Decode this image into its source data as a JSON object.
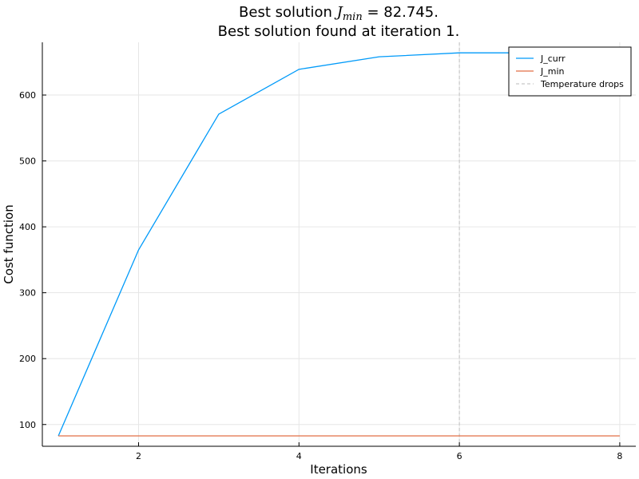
{
  "chart_data": {
    "type": "line",
    "title_line1": {
      "prefix": "Best solution ",
      "math_symbol": "J",
      "math_subscript": "min",
      "suffix": " = 82.745."
    },
    "title_line2": "Best solution found at iteration 1.",
    "xlabel": "Iterations",
    "ylabel": "Cost function",
    "xlim": [
      0.8,
      8.2
    ],
    "ylim": [
      67,
      680
    ],
    "xticks": [
      2,
      4,
      6,
      8
    ],
    "yticks": [
      100,
      200,
      300,
      400,
      500,
      600
    ],
    "grid": true,
    "legend_position": "top-right",
    "series": [
      {
        "name": "J_curr",
        "color": "#009af9",
        "style": "solid",
        "x": [
          1,
          2,
          3,
          4,
          5,
          6,
          7,
          8
        ],
        "y": [
          82.745,
          365,
          571,
          639,
          658,
          664,
          664,
          664
        ]
      },
      {
        "name": "J_min",
        "color": "#e26f46",
        "style": "solid",
        "x": [
          1,
          2,
          3,
          4,
          5,
          6,
          7,
          8
        ],
        "y": [
          82.745,
          82.745,
          82.745,
          82.745,
          82.745,
          82.745,
          82.745,
          82.745
        ]
      }
    ],
    "vlines": [
      {
        "name": "Temperature drops",
        "color": "#c8c8c8",
        "style": "dashed",
        "x": [
          6
        ]
      }
    ]
  }
}
